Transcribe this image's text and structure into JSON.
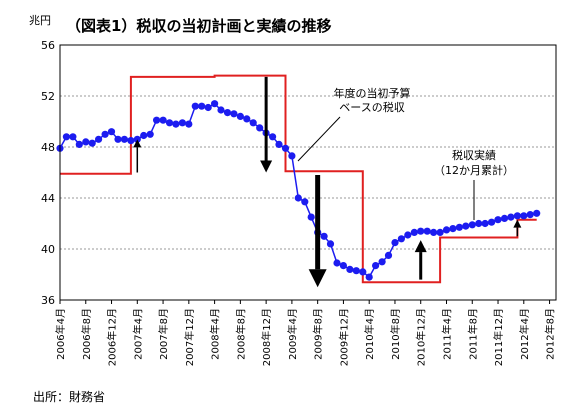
{
  "chart_data": {
    "type": "line",
    "title": "（図表1）税収の当初計画と実績の推移",
    "yunit": "兆円",
    "ylim": [
      36,
      56
    ],
    "yticks": [
      36,
      40,
      44,
      48,
      52,
      56
    ],
    "x_tick_labels": [
      "2006年4月",
      "2006年8月",
      "2006年12月",
      "2007年4月",
      "2007年8月",
      "2007年12月",
      "2008年4月",
      "2008年8月",
      "2008年12月",
      "2009年4月",
      "2009年8月",
      "2009年12月",
      "2010年4月",
      "2010年8月",
      "2010年12月",
      "2011年4月",
      "2011年8月",
      "2011年12月",
      "2012年4月",
      "2012年8月"
    ],
    "x_range": [
      "2006-04",
      "2012-09"
    ],
    "series": [
      {
        "name": "税収実績",
        "color": "#1c1cf0",
        "marker": "circle",
        "x": [
          "2006-04",
          "2006-05",
          "2006-06",
          "2006-07",
          "2006-08",
          "2006-09",
          "2006-10",
          "2006-11",
          "2006-12",
          "2007-01",
          "2007-02",
          "2007-03",
          "2007-04",
          "2007-05",
          "2007-06",
          "2007-07",
          "2007-08",
          "2007-09",
          "2007-10",
          "2007-11",
          "2007-12",
          "2008-01",
          "2008-02",
          "2008-03",
          "2008-04",
          "2008-05",
          "2008-06",
          "2008-07",
          "2008-08",
          "2008-09",
          "2008-10",
          "2008-11",
          "2008-12",
          "2009-01",
          "2009-02",
          "2009-03",
          "2009-04",
          "2009-05",
          "2009-06",
          "2009-07",
          "2009-08",
          "2009-09",
          "2009-10",
          "2009-11",
          "2009-12",
          "2010-01",
          "2010-02",
          "2010-03",
          "2010-04",
          "2010-05",
          "2010-06",
          "2010-07",
          "2010-08",
          "2010-09",
          "2010-10",
          "2010-11",
          "2010-12",
          "2011-01",
          "2011-02",
          "2011-03",
          "2011-04",
          "2011-05",
          "2011-06",
          "2011-07",
          "2011-08",
          "2011-09",
          "2011-10",
          "2011-11",
          "2011-12",
          "2012-01",
          "2012-02",
          "2012-03",
          "2012-04",
          "2012-05",
          "2012-06"
        ],
        "y": [
          47.9,
          48.8,
          48.8,
          48.2,
          48.4,
          48.3,
          48.6,
          49.0,
          49.2,
          48.6,
          48.6,
          48.5,
          48.6,
          48.9,
          49.0,
          50.1,
          50.1,
          49.9,
          49.8,
          49.9,
          49.8,
          51.2,
          51.2,
          51.1,
          51.4,
          50.9,
          50.7,
          50.6,
          50.4,
          50.2,
          49.9,
          49.5,
          49.1,
          48.8,
          48.2,
          47.9,
          47.3,
          44.0,
          43.7,
          42.5,
          41.3,
          41.0,
          40.4,
          38.9,
          38.7,
          38.4,
          38.3,
          38.2,
          37.8,
          38.7,
          39.0,
          39.5,
          40.5,
          40.8,
          41.1,
          41.3,
          41.4,
          41.4,
          41.3,
          41.3,
          41.5,
          41.6,
          41.7,
          41.8,
          41.9,
          42.0,
          42.0,
          42.1,
          42.3,
          42.4,
          42.5,
          42.6,
          42.6,
          42.7,
          42.8
        ]
      },
      {
        "name": "年度の当初予算ベースの税収",
        "color": "#e02020",
        "x": [
          "2006-04",
          "2007-03",
          "2007-03",
          "2008-04",
          "2008-04",
          "2009-03",
          "2009-03",
          "2010-03",
          "2010-03",
          "2011-03",
          "2011-03",
          "2012-03",
          "2012-03",
          "2012-06"
        ],
        "y": [
          45.9,
          45.9,
          53.5,
          53.5,
          53.6,
          53.6,
          46.1,
          46.1,
          37.4,
          37.4,
          40.9,
          40.9,
          42.3,
          42.3
        ]
      }
    ],
    "annotations": [
      {
        "lines": [
          "年度の当初予算",
          "ベースの税収"
        ]
      },
      {
        "lines": [
          "税収実績",
          "（12か月累計）"
        ]
      }
    ],
    "arrows": [
      {
        "x": "2007-04",
        "from": 46.0,
        "to": 48.6,
        "size": "small"
      },
      {
        "x": "2008-12",
        "from": 53.5,
        "to": 46.0,
        "size": "medium"
      },
      {
        "x": "2009-08",
        "from": 45.8,
        "to": 37.0,
        "size": "large"
      },
      {
        "x": "2010-12",
        "from": 37.6,
        "to": 40.7,
        "size": "medium"
      },
      {
        "x": "2012-03",
        "from": 41.0,
        "to": 42.3,
        "size": "small"
      }
    ]
  },
  "source_text": "出所：財務省"
}
